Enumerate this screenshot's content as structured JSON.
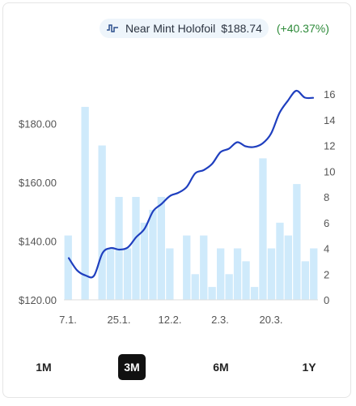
{
  "legend": {
    "icon": "waveform-icon",
    "name": "Near Mint Holofoil",
    "price": "$188.74",
    "change": "(+40.37%)",
    "change_color": "#2e8b3a"
  },
  "colors": {
    "line": "#1f3fbf",
    "bars": "#cfeafb",
    "axis": "#dddddd"
  },
  "ranges": [
    {
      "label": "1M",
      "active": false
    },
    {
      "label": "3M",
      "active": true
    },
    {
      "label": "6M",
      "active": false
    },
    {
      "label": "1Y",
      "active": false
    }
  ],
  "chart_data": {
    "type": "bar+line",
    "title": "",
    "x_tick_labels": [
      "7.1.",
      "25.1.",
      "12.2.",
      "2.3.",
      "20.3."
    ],
    "y_left": {
      "ticks": [
        "$120.00",
        "$140.00",
        "$160.00",
        "$180.00"
      ],
      "min": 120,
      "max": 190
    },
    "y_right": {
      "ticks": [
        "0",
        "2",
        "4",
        "6",
        "8",
        "10",
        "12",
        "14",
        "16"
      ],
      "min": 0,
      "max": 16
    },
    "volume": [
      5,
      0,
      15,
      0,
      12,
      4,
      8,
      4,
      8,
      6,
      7,
      8,
      4,
      0,
      5,
      2,
      5,
      1,
      4,
      2,
      4,
      3,
      1,
      11,
      4,
      6,
      5,
      9,
      3,
      4
    ],
    "price": [
      134.2,
      130,
      128.3,
      128.2,
      135.9,
      137.6,
      137.1,
      137.8,
      141.3,
      144.2,
      150.1,
      152.6,
      155.3,
      156.4,
      158.4,
      163,
      164.1,
      166.2,
      170.2,
      171.4,
      173.6,
      172.2,
      172,
      173.2,
      176.5,
      183.5,
      187.7,
      191.1,
      188.8,
      188.7
    ]
  }
}
